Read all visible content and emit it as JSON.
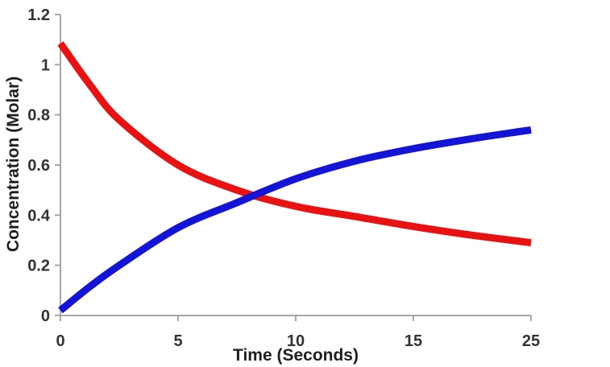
{
  "chart_data": {
    "type": "line",
    "title": "",
    "xlabel": "Time (Seconds)",
    "ylabel": "Concentration (Molar)",
    "x_tick_labels": [
      "0",
      "5",
      "10",
      "15",
      "25"
    ],
    "y_tick_labels": [
      "0",
      "0.2",
      "0.4",
      "0.6",
      "0.8",
      "1",
      "1.2"
    ],
    "ylim": [
      0,
      1.2
    ],
    "grid": false,
    "legend": "none",
    "axis_color": "#a6a6a6",
    "tick_label_color": "#333333",
    "axis_title_color": "#1f1f1f",
    "line_width": 9,
    "series": [
      {
        "name": "red-curve",
        "description": "decreasing concentration curve (starts high, decays)",
        "color": "#e81212",
        "x_frac": [
          0,
          0.0625,
          0.125,
          0.25,
          0.375,
          0.5,
          0.625,
          0.75,
          0.875,
          1
        ],
        "values": [
          1.085,
          0.92,
          0.78,
          0.6,
          0.5,
          0.435,
          0.395,
          0.355,
          0.32,
          0.29
        ]
      },
      {
        "name": "blue-curve",
        "description": "increasing concentration curve (starts near zero, rises)",
        "color": "#1414d6",
        "x_frac": [
          0,
          0.0625,
          0.125,
          0.25,
          0.375,
          0.5,
          0.625,
          0.75,
          0.875,
          1
        ],
        "values": [
          0.02,
          0.115,
          0.2,
          0.35,
          0.45,
          0.545,
          0.615,
          0.665,
          0.705,
          0.74
        ]
      }
    ],
    "crossing_point_note": "curves cross at approx value 0.47, just left of the 10 tick"
  }
}
